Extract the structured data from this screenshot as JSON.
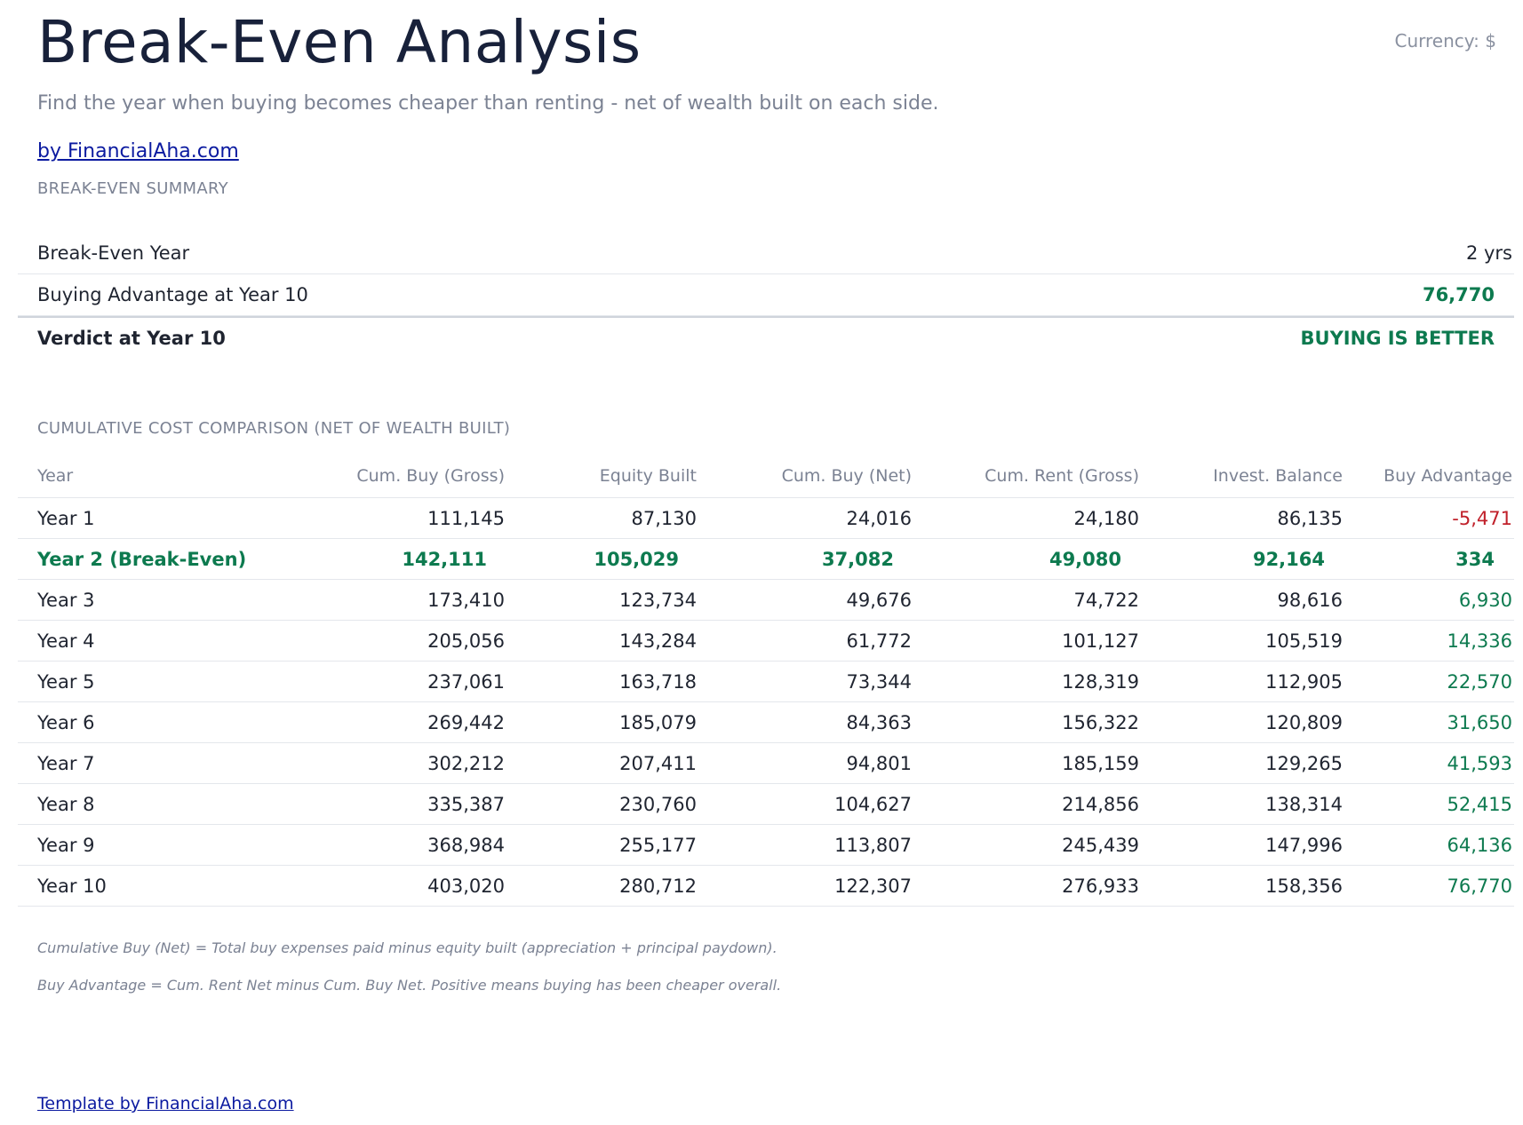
{
  "header": {
    "title": "Break-Even Analysis",
    "currency": "Currency: $",
    "subtitle": "Find the year when buying becomes cheaper than renting - net of wealth built on each side.",
    "byline": "by FinancialAha.com"
  },
  "summary": {
    "section_label": "BREAK-EVEN SUMMARY",
    "rows": [
      {
        "label": "Break-Even Year",
        "value": "2 yrs"
      },
      {
        "label": "Buying Advantage at Year 10",
        "value": "76,770"
      },
      {
        "label": "Verdict at Year 10",
        "value": "BUYING IS BETTER"
      }
    ]
  },
  "comparison": {
    "section_label": "CUMULATIVE COST COMPARISON (NET OF WEALTH BUILT)",
    "columns": [
      "Year",
      "Cum. Buy (Gross)",
      "Equity Built",
      "Cum. Buy (Net)",
      "Cum. Rent (Gross)",
      "Invest. Balance",
      "Buy Advantage"
    ],
    "rows": [
      [
        "Year 1",
        "111,145",
        "87,130",
        "24,016",
        "24,180",
        "86,135",
        "-5,471"
      ],
      [
        "Year 2 (Break-Even)",
        "142,111",
        "105,029",
        "37,082",
        "49,080",
        "92,164",
        "334"
      ],
      [
        "Year 3",
        "173,410",
        "123,734",
        "49,676",
        "74,722",
        "98,616",
        "6,930"
      ],
      [
        "Year 4",
        "205,056",
        "143,284",
        "61,772",
        "101,127",
        "105,519",
        "14,336"
      ],
      [
        "Year 5",
        "237,061",
        "163,718",
        "73,344",
        "128,319",
        "112,905",
        "22,570"
      ],
      [
        "Year 6",
        "269,442",
        "185,079",
        "84,363",
        "156,322",
        "120,809",
        "31,650"
      ],
      [
        "Year 7",
        "302,212",
        "207,411",
        "94,801",
        "185,159",
        "129,265",
        "41,593"
      ],
      [
        "Year 8",
        "335,387",
        "230,760",
        "104,627",
        "214,856",
        "138,314",
        "52,415"
      ],
      [
        "Year 9",
        "368,984",
        "255,177",
        "113,807",
        "245,439",
        "147,996",
        "64,136"
      ],
      [
        "Year 10",
        "403,020",
        "280,712",
        "122,307",
        "276,933",
        "158,356",
        "76,770"
      ]
    ]
  },
  "notes": {
    "note1": "Cumulative Buy (Net) = Total buy expenses paid minus equity built (appreciation + principal paydown).",
    "note2": "Buy Advantage = Cum. Rent Net minus Cum. Buy Net. Positive means buying has been cheaper overall."
  },
  "footer": {
    "link": "Template by FinancialAha.com"
  },
  "colors": {
    "positive": "#0d7a4f",
    "negative": "#c0202a",
    "link": "#0b1aa0"
  }
}
